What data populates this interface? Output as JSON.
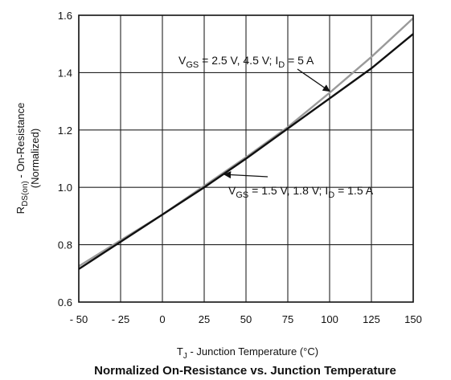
{
  "chart_data": {
    "type": "line",
    "title": "Normalized On-Resistance vs. Junction Temperature",
    "xlabel": {
      "main": "T",
      "sub": "J",
      "rest": " - Junction Temperature (°C)"
    },
    "ylabel": {
      "line1_main": "R",
      "line1_sub": "DS(on)",
      "line1_rest": " - On-Resistance",
      "line2": "(Normalized)"
    },
    "xlim": [
      -50,
      150
    ],
    "ylim": [
      0.6,
      1.6
    ],
    "xticks": [
      -50,
      -25,
      0,
      25,
      50,
      75,
      100,
      125,
      150
    ],
    "xtick_labels": [
      "- 50",
      "- 25",
      "0",
      "25",
      "50",
      "75",
      "100",
      "125",
      "150"
    ],
    "yticks": [
      0.6,
      0.8,
      1.0,
      1.2,
      1.4,
      1.6
    ],
    "ytick_labels": [
      "0.6",
      "0.8",
      "1.0",
      "1.2",
      "1.4",
      "1.6"
    ],
    "grid": true,
    "series": [
      {
        "key": "high",
        "color": "#9a9a9a",
        "x": [
          -50,
          -25,
          0,
          25,
          50,
          75,
          100,
          125,
          150
        ],
        "y": [
          0.725,
          0.815,
          0.905,
          1.005,
          1.105,
          1.21,
          1.33,
          1.455,
          1.59
        ]
      },
      {
        "key": "low",
        "color": "#111111",
        "x": [
          -50,
          -25,
          0,
          25,
          50,
          75,
          100,
          125,
          150
        ],
        "y": [
          0.715,
          0.81,
          0.905,
          1.0,
          1.1,
          1.205,
          1.31,
          1.415,
          1.535
        ]
      }
    ],
    "annotations": [
      {
        "key": "high",
        "parts": [
          {
            "t": "V",
            "sub": false
          },
          {
            "t": "GS",
            "sub": true
          },
          {
            "t": " = 2.5 V, 4.5 V; I",
            "sub": false
          },
          {
            "t": "D",
            "sub": true
          },
          {
            "t": " = 5 A",
            "sub": false
          }
        ],
        "arrow_to": [
          100,
          1.335
        ]
      },
      {
        "key": "low",
        "parts": [
          {
            "t": "V",
            "sub": false
          },
          {
            "t": "GS",
            "sub": true
          },
          {
            "t": " = 1.5 V, 1.8 V; I",
            "sub": false
          },
          {
            "t": "D",
            "sub": true
          },
          {
            "t": " = 1.5 A",
            "sub": false
          }
        ],
        "arrow_to": [
          37,
          1.045
        ]
      }
    ]
  }
}
